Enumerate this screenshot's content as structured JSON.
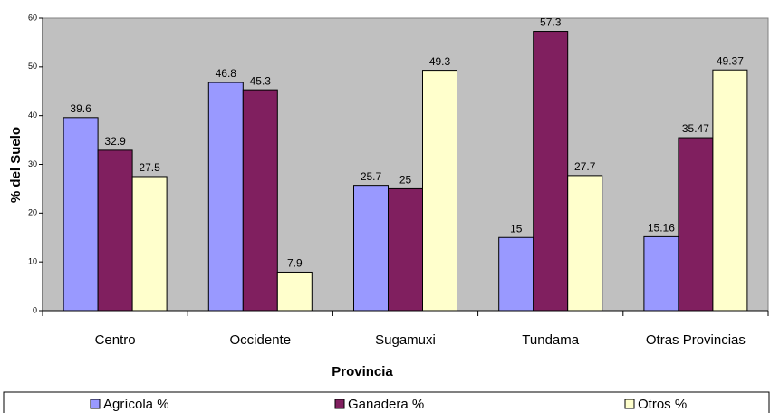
{
  "chart_data": {
    "type": "bar",
    "categories": [
      "Centro",
      "Occidente",
      "Sugamuxi",
      "Tundama",
      "Otras Provincias"
    ],
    "series": [
      {
        "name": "Agrícola %",
        "color": "#9999ff",
        "values": [
          39.6,
          46.8,
          25.7,
          15,
          15.16
        ]
      },
      {
        "name": "Ganadera %",
        "color": "#801f5f",
        "values": [
          32.9,
          45.3,
          25,
          57.3,
          35.47
        ]
      },
      {
        "name": "Otros %",
        "color": "#ffffcc",
        "values": [
          27.5,
          7.9,
          49.3,
          27.7,
          49.37
        ]
      }
    ],
    "x_label": "Provincia",
    "y_label": "% del Suelo",
    "ylim": [
      0,
      60
    ],
    "yticks": [
      0,
      10,
      20,
      30,
      40,
      50,
      60
    ],
    "plot_background": "#c0c0c0",
    "legend": "bottom"
  }
}
